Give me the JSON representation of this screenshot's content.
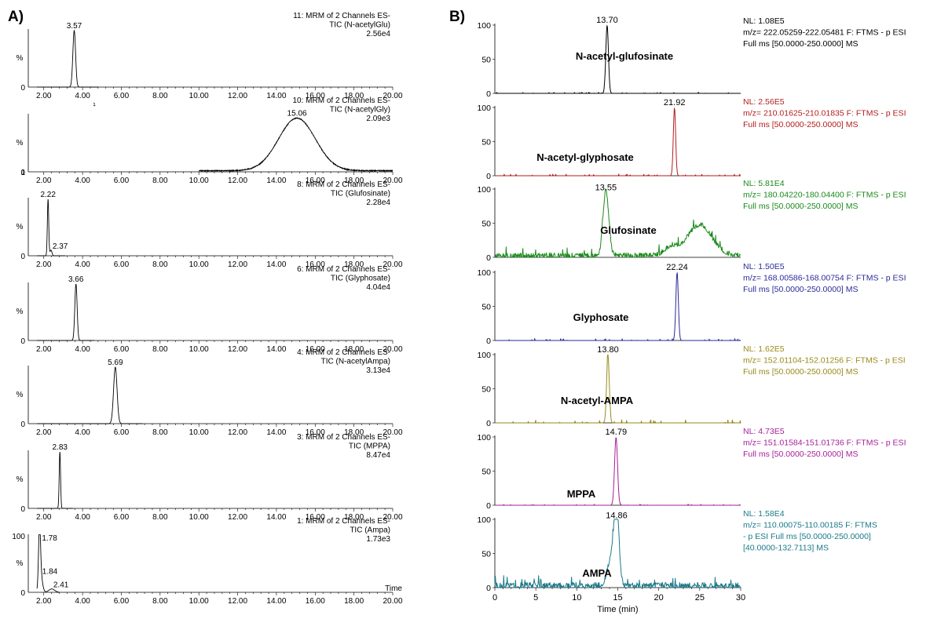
{
  "panel_a_label": "A)",
  "panel_b_label": "B)",
  "chart_data": [
    {
      "type": "line",
      "panel": "A",
      "x_ticks": [
        "2.00",
        "4.00",
        "6.00",
        "8.00",
        "10.00",
        "12.00",
        "14.00",
        "16.00",
        "18.00",
        "20.00"
      ],
      "xlim": [
        1.2,
        20.0
      ],
      "y_label": "%",
      "traces": [
        {
          "header": [
            "11: MRM of 2 Channels ES-",
            "TIC (N-acetylGlu)",
            "2.56e4"
          ],
          "peaks": [
            {
              "rt": 3.57,
              "height": 1.0,
              "width": 0.07,
              "label": "3.57"
            }
          ],
          "x_end": 4.8,
          "y_ticks": []
        },
        {
          "header": [
            "10: MRM of 2 Channels ES-",
            "TIC (N-acetylGly)",
            "2.09e3"
          ],
          "peaks": [
            {
              "rt": 15.06,
              "height": 0.93,
              "width": 0.95,
              "label": "15.06"
            }
          ],
          "x_start": 10.0,
          "y_ticks": [
            "1"
          ],
          "baseline": 0.02
        },
        {
          "header": [
            "8: MRM of 2 Channels ES-",
            "TIC (Glufosinate)",
            "2.28e4"
          ],
          "peaks": [
            {
              "rt": 2.22,
              "height": 1.0,
              "width": 0.035,
              "label": "2.22"
            },
            {
              "rt": 2.37,
              "height": 0.1,
              "width": 0.05,
              "label": "2.37"
            }
          ],
          "x_end": 3.1,
          "y_ticks": []
        },
        {
          "header": [
            "6: MRM of 2 Channels ES-",
            "TIC (Glyphosate)",
            "4.04e4"
          ],
          "peaks": [
            {
              "rt": 3.66,
              "height": 1.0,
              "width": 0.06,
              "label": "3.66"
            }
          ],
          "x_end": 4.6,
          "y_ticks": []
        },
        {
          "header": [
            "4: MRM of 2 Channels ES-",
            "TIC (N-acetylAmpa)",
            "3.13e4"
          ],
          "peaks": [
            {
              "rt": 5.69,
              "height": 1.0,
              "width": 0.09,
              "label": "5.69"
            }
          ],
          "x_end": 7.1,
          "y_ticks": []
        },
        {
          "header": [
            "3: MRM of 2 Channels ES-",
            "TIC (MPPA)",
            "8.47e4"
          ],
          "peaks": [
            {
              "rt": 2.83,
              "height": 1.0,
              "width": 0.035,
              "label": "2.83"
            }
          ],
          "x_end": 3.5,
          "y_ticks": []
        },
        {
          "header": [
            "1: MRM of 2 Channels ES-",
            "TIC (Ampa)",
            "1.73e3"
          ],
          "peaks": [
            {
              "rt": 1.78,
              "height": 1.0,
              "width": 0.05,
              "label": "1.78"
            },
            {
              "rt": 1.84,
              "height": 0.3,
              "width": 0.09,
              "label": "1.84"
            },
            {
              "rt": 2.41,
              "height": 0.06,
              "width": 0.15,
              "label": "2.41"
            }
          ],
          "x_end": 2.8,
          "y_ticks": [
            "100"
          ],
          "x_axis_label": "Time"
        }
      ]
    },
    {
      "type": "line",
      "panel": "B",
      "x_ticks": [
        "0",
        "5",
        "10",
        "15",
        "20",
        "25",
        "30"
      ],
      "xlim": [
        0,
        30
      ],
      "x_axis_label": "Time (min)",
      "y_ticks": [
        "0",
        "50",
        "100"
      ],
      "ylim": [
        0,
        100
      ],
      "traces": [
        {
          "compound": "N-acetyl-glufosinate",
          "color": "#000000",
          "peak_rt": 13.7,
          "peak_label": "13.70",
          "info": [
            "NL: 1.08E5",
            "m/z= 222.05259-222.05481 F: FTMS - p ESI",
            "Full ms [50.0000-250.0000]  MS"
          ],
          "peaks": [
            {
              "rt": 13.7,
              "height": 100,
              "width": 0.16
            }
          ],
          "noise": 0.8
        },
        {
          "compound": "N-acetyl-glyphosate",
          "color": "#b21e1e",
          "peak_rt": 21.92,
          "peak_label": "21.92",
          "info": [
            "NL: 2.56E5",
            "m/z= 210.01625-210.01835 F: FTMS - p ESI",
            "Full ms [50.0000-250.0000]  MS"
          ],
          "peaks": [
            {
              "rt": 21.92,
              "height": 100,
              "width": 0.14
            }
          ],
          "noise": 1.2
        },
        {
          "compound": "Glufosinate",
          "color": "#1a8a1a",
          "peak_rt": 13.55,
          "peak_label": "13.55",
          "info": [
            "NL: 5.81E4",
            "m/z= 180.04220-180.04400 F: FTMS - p ESI",
            "Full ms [50.0000-250.0000]  MS"
          ],
          "peaks": [
            {
              "rt": 13.55,
              "height": 95,
              "width": 0.35
            },
            {
              "rt": 25.0,
              "height": 45,
              "width": 1.5
            },
            {
              "rt": 21.5,
              "height": 12,
              "width": 0.8
            }
          ],
          "noise": 12
        },
        {
          "compound": "Glyphosate",
          "color": "#2a2a9a",
          "peak_rt": 22.24,
          "peak_label": "22.24",
          "info": [
            "NL: 1.50E5",
            "m/z= 168.00586-168.00754 F: FTMS - p ESI",
            "Full ms [50.0000-250.0000]  MS"
          ],
          "peaks": [
            {
              "rt": 22.24,
              "height": 100,
              "width": 0.15
            }
          ],
          "noise": 1.5
        },
        {
          "compound": "N-acetyl-AMPA",
          "color": "#9a8a1a",
          "peak_rt": 13.8,
          "peak_label": "13.80",
          "info": [
            "NL: 1.62E5",
            "m/z= 152.01104-152.01256 F: FTMS - p ESI",
            "Full ms [50.0000-250.0000]  MS"
          ],
          "peaks": [
            {
              "rt": 13.8,
              "height": 100,
              "width": 0.16
            }
          ],
          "noise": 2.5
        },
        {
          "compound": "MPPA",
          "color": "#a81e9a",
          "peak_rt": 14.79,
          "peak_label": "14.79",
          "info": [
            "NL: 4.73E5",
            "m/z= 151.01584-151.01736 F: FTMS - p ESI",
            "Full ms [50.0000-250.0000]  MS"
          ],
          "peaks": [
            {
              "rt": 14.79,
              "height": 100,
              "width": 0.18
            }
          ],
          "noise": 0.8
        },
        {
          "compound": "AMPA",
          "color": "#1a7a8a",
          "peak_rt": 14.86,
          "peak_label": "14.86",
          "info": [
            "NL: 1.58E4",
            "m/z= 110.00075-110.00185 F: FTMS",
            "- p ESI Full ms [50.0000-250.0000]",
            "[40.0000-132.7113]  MS"
          ],
          "peaks": [
            {
              "rt": 14.86,
              "height": 98,
              "width": 0.3
            },
            {
              "rt": 14.3,
              "height": 45,
              "width": 0.5
            }
          ],
          "noise": 14
        }
      ]
    }
  ]
}
